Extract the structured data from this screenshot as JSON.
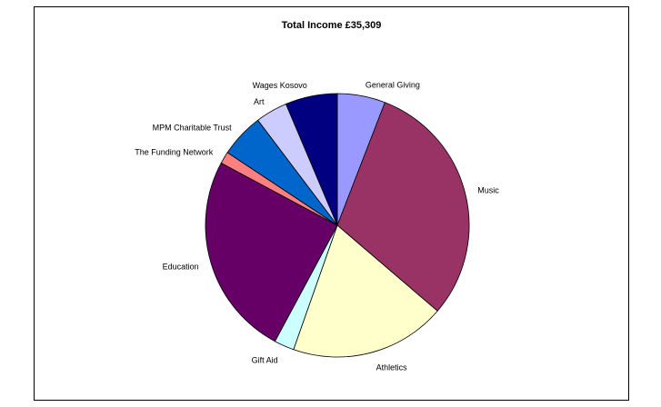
{
  "chart_data": {
    "type": "pie",
    "title": "Total Income £35,309",
    "start_angle_deg": 0,
    "direction": "clockwise",
    "slices": [
      {
        "label": "General Giving",
        "value": 6.0,
        "color": "#9999FF"
      },
      {
        "label": "Music",
        "value": 31.0,
        "color": "#993366"
      },
      {
        "label": "Athletics",
        "value": 19.5,
        "color": "#FFFFCC"
      },
      {
        "label": "Gift Aid",
        "value": 2.5,
        "color": "#CCFFFF"
      },
      {
        "label": "Education",
        "value": 25.5,
        "color": "#660066"
      },
      {
        "label": "The Funding Network",
        "value": 1.5,
        "color": "#FF8080"
      },
      {
        "label": "MPM Charitable Trust",
        "value": 5.5,
        "color": "#0066CC"
      },
      {
        "label": "Art",
        "value": 4.0,
        "color": "#CCCCFF"
      },
      {
        "label": "Wages Kosovo",
        "value": 6.5,
        "color": "#000080"
      }
    ]
  }
}
